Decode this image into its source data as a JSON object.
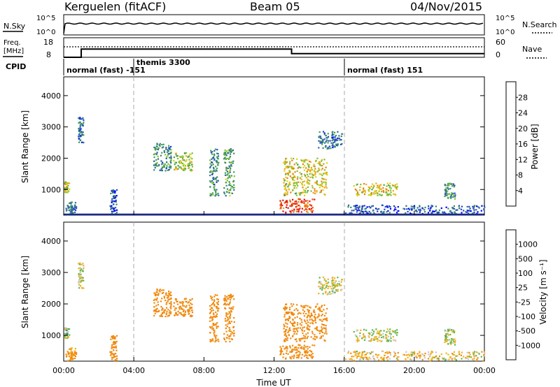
{
  "header": {
    "radar": "Kerguelen (fitACF)",
    "beam": "Beam 05",
    "date": "04/Nov/2015"
  },
  "status_panels": {
    "nsky_label": "N.Sky",
    "nsky_ticks": [
      "10^5",
      "10^0"
    ],
    "nsearch_label": "N.Search",
    "nsearch_ticks": [
      "10^5",
      "10^0"
    ],
    "freq_label_line1": "Freq.",
    "freq_label_line2": "[MHz]",
    "freq_ticks": [
      "18",
      "8"
    ],
    "nave_label": "Nave",
    "nave_ticks": [
      "60",
      "0"
    ],
    "cpid_label": "CPID",
    "cpid_segments": [
      {
        "text": "normal (fast) -151",
        "start_hour": 0.0
      },
      {
        "text": "themis 3300",
        "start_hour": 4.0
      },
      {
        "text": "normal (fast) 151",
        "start_hour": 16.0
      }
    ],
    "freq_steps": [
      {
        "from_hour": 0.0,
        "to_hour": 1.0,
        "mhz": 8
      },
      {
        "from_hour": 1.0,
        "to_hour": 13.0,
        "mhz": 12.5
      },
      {
        "from_hour": 13.0,
        "to_hour": 24.0,
        "mhz": 10
      }
    ]
  },
  "axes": {
    "ylabel": "Slant Range [km]",
    "yticks": [
      "4000",
      "3000",
      "2000",
      "1000"
    ],
    "xticks": [
      "00:00",
      "04:00",
      "08:00",
      "12:00",
      "16:00",
      "20:00",
      "00:00"
    ],
    "xlabel": "Time UT",
    "x_range_hours": [
      0,
      24
    ],
    "y_range_km": [
      180,
      4600
    ]
  },
  "power_colorbar": {
    "label": "Power [dB]",
    "ticks": [
      "28",
      "24",
      "20",
      "16",
      "12",
      "8",
      "4"
    ],
    "colors": [
      "#0000ff",
      "#2244cc",
      "#2f6aa0",
      "#3a8a6a",
      "#46a050",
      "#7dc02e",
      "#d9d21a",
      "#f2a81a",
      "#f07a10",
      "#e84a10",
      "#e01010"
    ]
  },
  "velocity_colorbar": {
    "label": "Velocity [m s⁻¹]",
    "ticks": [
      "1000",
      "500",
      "100",
      "25",
      "-25",
      "-100",
      "-500",
      "-1000"
    ],
    "colors": [
      "#1e3cc8",
      "#2f6aa0",
      "#3f8c5a",
      "#5cb84a",
      "#c8c8c8",
      "#c8c8c8",
      "#f2b21e",
      "#f08a10",
      "#e84a10",
      "#e01010"
    ]
  },
  "chart_data": {
    "type": "heatmap",
    "x_unit": "hours UT",
    "y_unit": "km",
    "scatter_regions": [
      {
        "t0": 0.0,
        "t1": 0.3,
        "r0": 900,
        "r1": 1250,
        "power_db": 18,
        "velocity": 50
      },
      {
        "t0": 0.1,
        "t1": 0.7,
        "r0": 200,
        "r1": 600,
        "power_db": 8,
        "velocity": -150
      },
      {
        "t0": 0.8,
        "t1": 1.1,
        "r0": 2500,
        "r1": 3300,
        "power_db": 8,
        "velocity": 0
      },
      {
        "t0": 2.6,
        "t1": 3.0,
        "r0": 200,
        "r1": 1000,
        "power_db": 6,
        "velocity": -300
      },
      {
        "t0": 5.1,
        "t1": 6.1,
        "r0": 1600,
        "r1": 2500,
        "power_db": 10,
        "velocity": -300
      },
      {
        "t0": 6.2,
        "t1": 7.3,
        "r0": 1600,
        "r1": 2200,
        "power_db": 16,
        "velocity": -400
      },
      {
        "t0": 8.3,
        "t1": 8.8,
        "r0": 800,
        "r1": 2300,
        "power_db": 10,
        "velocity": -400
      },
      {
        "t0": 9.1,
        "t1": 9.7,
        "r0": 800,
        "r1": 2300,
        "power_db": 12,
        "velocity": -400
      },
      {
        "t0": 12.3,
        "t1": 14.3,
        "r0": 250,
        "r1": 700,
        "power_db": 26,
        "velocity": -300
      },
      {
        "t0": 12.5,
        "t1": 15.0,
        "r0": 800,
        "r1": 2000,
        "power_db": 18,
        "velocity": -400
      },
      {
        "t0": 14.5,
        "t1": 15.9,
        "r0": 2300,
        "r1": 2850,
        "power_db": 8,
        "velocity": 0
      },
      {
        "t0": 16.5,
        "t1": 19.0,
        "r0": 800,
        "r1": 1200,
        "power_db": 18,
        "velocity": 0
      },
      {
        "t0": 21.7,
        "t1": 22.3,
        "r0": 700,
        "r1": 1200,
        "power_db": 10,
        "velocity": 10
      },
      {
        "t0": 16.0,
        "t1": 24.0,
        "r0": 200,
        "r1": 500,
        "power_db": 6,
        "velocity": -50
      }
    ]
  }
}
